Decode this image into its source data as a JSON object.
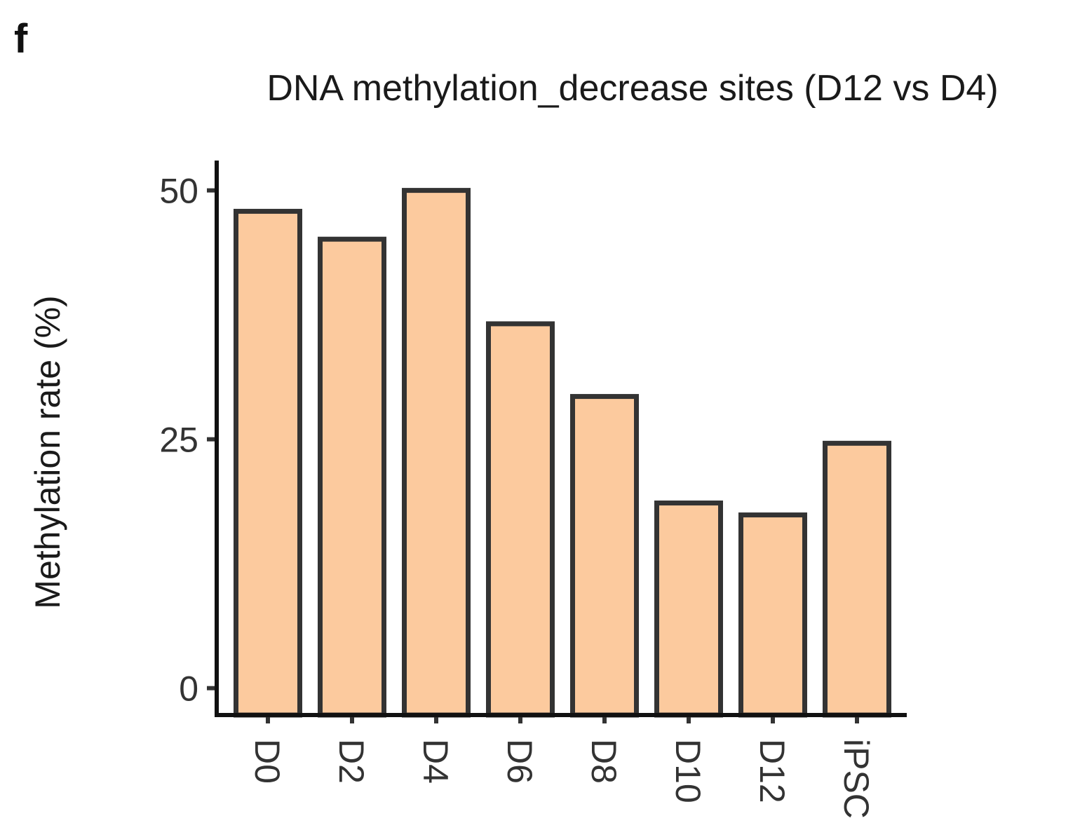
{
  "panel_letter": "f",
  "chart_data": {
    "type": "bar",
    "title": "DNA methylation_decrease sites (D12 vs D4)",
    "xlabel": "",
    "ylabel": "Methylation rate (%)",
    "categories": [
      "D0",
      "D2",
      "D4",
      "D6",
      "D8",
      "D10",
      "D12",
      "iPSC"
    ],
    "values": [
      47.9,
      45.1,
      50.0,
      36.6,
      29.3,
      18.6,
      17.4,
      24.6
    ],
    "ylim": [
      -2.7,
      53
    ],
    "yticks": [
      0,
      25,
      50
    ],
    "ytick_labels": [
      "0",
      "25",
      "50"
    ],
    "bar_color": "#FCCA9E",
    "bar_edge_color": "#333333",
    "grid": false,
    "legend": "none"
  }
}
